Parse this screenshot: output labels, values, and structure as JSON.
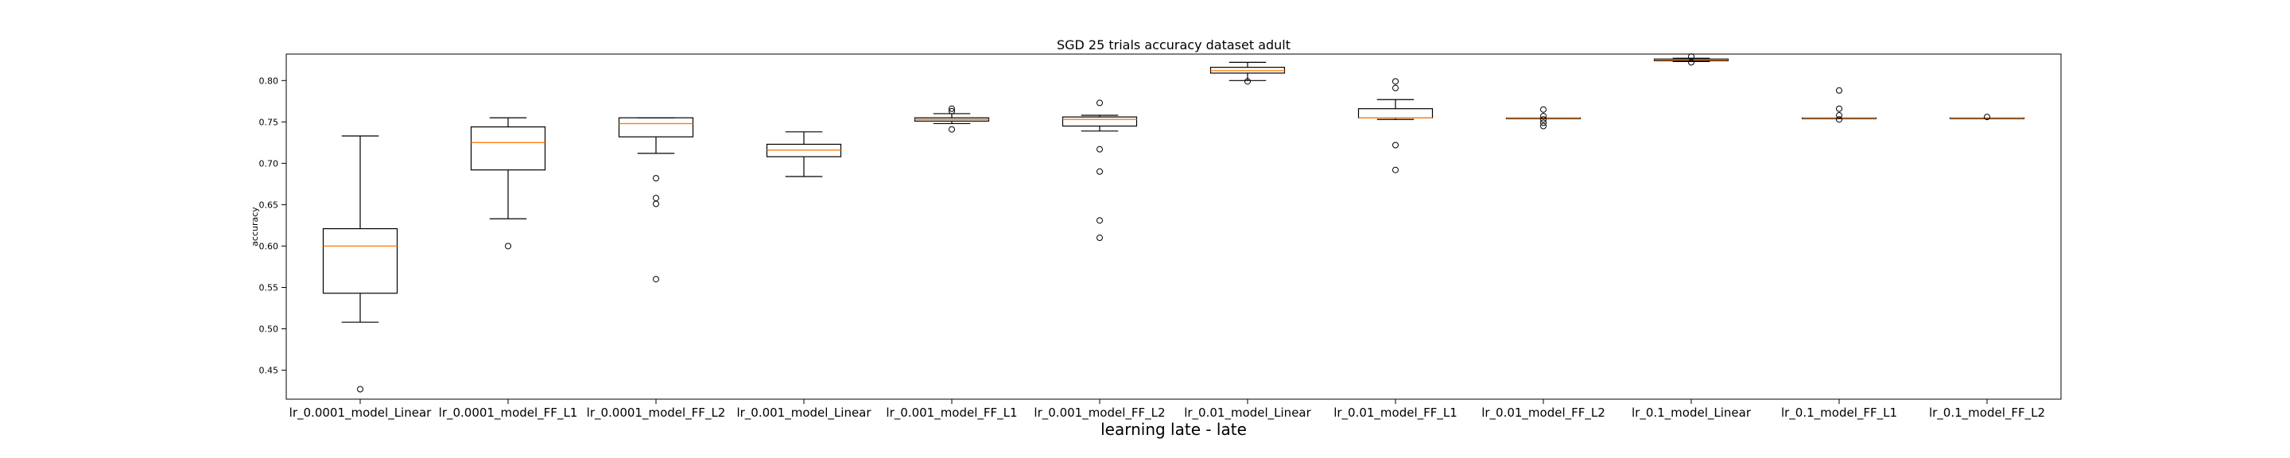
{
  "chart_data": {
    "type": "box",
    "title": "SGD 25 trials accuracy dataset adult",
    "xlabel": "learning late - late",
    "ylabel": "accuracy",
    "ylim": [
      0.415,
      0.832
    ],
    "yticks": [
      0.45,
      0.5,
      0.55,
      0.6,
      0.65,
      0.7,
      0.75,
      0.8
    ],
    "ytick_labels": [
      "0.45",
      "0.50",
      "0.55",
      "0.60",
      "0.65",
      "0.70",
      "0.75",
      "0.80"
    ],
    "grid": false,
    "colors": {
      "box": "#000000",
      "median": "#ff7f0e",
      "flier": "#000000"
    },
    "boxes": [
      {
        "label": "lr_0.0001_model_Linear",
        "whisker_low": 0.508,
        "q1": 0.543,
        "median": 0.6,
        "q3": 0.621,
        "whisker_high": 0.733,
        "fliers": [
          0.427
        ]
      },
      {
        "label": "lr_0.0001_model_FF_L1",
        "whisker_low": 0.633,
        "q1": 0.692,
        "median": 0.725,
        "q3": 0.744,
        "whisker_high": 0.755,
        "fliers": [
          0.6
        ]
      },
      {
        "label": "lr_0.0001_model_FF_L2",
        "whisker_low": 0.712,
        "q1": 0.732,
        "median": 0.748,
        "q3": 0.755,
        "whisker_high": 0.755,
        "fliers": [
          0.682,
          0.658,
          0.651,
          0.56
        ]
      },
      {
        "label": "lr_0.001_model_Linear",
        "whisker_low": 0.684,
        "q1": 0.708,
        "median": 0.716,
        "q3": 0.723,
        "whisker_high": 0.738,
        "fliers": []
      },
      {
        "label": "lr_0.001_model_FF_L1",
        "whisker_low": 0.748,
        "q1": 0.751,
        "median": 0.753,
        "q3": 0.755,
        "whisker_high": 0.76,
        "fliers": [
          0.766,
          0.763,
          0.741
        ]
      },
      {
        "label": "lr_0.001_model_FF_L2",
        "whisker_low": 0.739,
        "q1": 0.745,
        "median": 0.753,
        "q3": 0.756,
        "whisker_high": 0.758,
        "fliers": [
          0.773,
          0.717,
          0.69,
          0.631,
          0.61
        ]
      },
      {
        "label": "lr_0.01_model_Linear",
        "whisker_low": 0.8,
        "q1": 0.809,
        "median": 0.812,
        "q3": 0.816,
        "whisker_high": 0.822,
        "fliers": [
          0.799
        ]
      },
      {
        "label": "lr_0.01_model_FF_L1",
        "whisker_low": 0.753,
        "q1": 0.755,
        "median": 0.755,
        "q3": 0.766,
        "whisker_high": 0.777,
        "fliers": [
          0.799,
          0.791,
          0.722,
          0.692
        ]
      },
      {
        "label": "lr_0.01_model_FF_L2",
        "whisker_low": 0.755,
        "q1": 0.755,
        "median": 0.755,
        "q3": 0.755,
        "whisker_high": 0.755,
        "fliers": [
          0.765,
          0.757,
          0.753,
          0.749,
          0.745
        ]
      },
      {
        "label": "lr_0.1_model_Linear",
        "whisker_low": 0.823,
        "q1": 0.824,
        "median": 0.825,
        "q3": 0.826,
        "whisker_high": 0.827,
        "fliers": [
          0.829,
          0.822
        ]
      },
      {
        "label": "lr_0.1_model_FF_L1",
        "whisker_low": 0.755,
        "q1": 0.755,
        "median": 0.755,
        "q3": 0.755,
        "whisker_high": 0.755,
        "fliers": [
          0.788,
          0.766,
          0.758,
          0.753
        ]
      },
      {
        "label": "lr_0.1_model_FF_L2",
        "whisker_low": 0.755,
        "q1": 0.755,
        "median": 0.755,
        "q3": 0.755,
        "whisker_high": 0.755,
        "fliers": [
          0.756
        ]
      }
    ]
  }
}
